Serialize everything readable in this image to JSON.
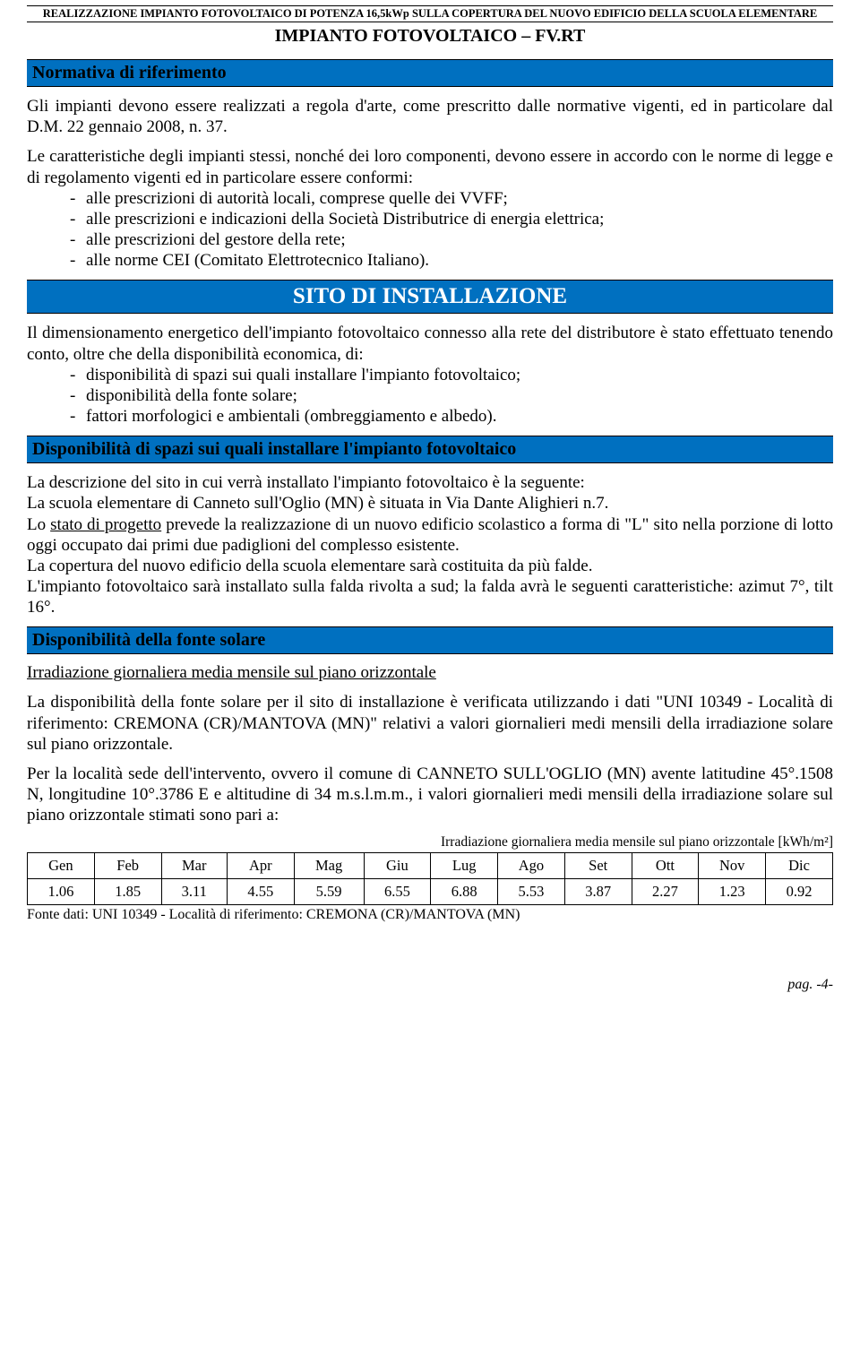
{
  "header": "REALIZZAZIONE IMPIANTO FOTOVOLTAICO DI POTENZA 16,5kWp SULLA COPERTURA DEL NUOVO EDIFICIO DELLA SCUOLA ELEMENTARE",
  "doc_title": "IMPIANTO FOTOVOLTAICO – FV.RT",
  "s1": {
    "heading": "Normativa di riferimento",
    "p1": "Gli impianti devono essere realizzati a regola d'arte, come prescritto dalle normative vigenti, ed in particolare dal D.M. 22 gennaio 2008, n. 37.",
    "p2": "Le caratteristiche degli impianti stessi, nonché dei loro componenti, devono essere in accordo con le norme di legge e di regolamento vigenti ed in particolare essere conformi:",
    "items": [
      "alle prescrizioni di autorità locali, comprese quelle dei VVFF;",
      "alle prescrizioni e indicazioni della Società Distributrice di energia elettrica;",
      "alle prescrizioni del gestore della rete;",
      "alle norme CEI (Comitato Elettrotecnico Italiano)."
    ]
  },
  "s2": {
    "heading": "SITO DI INSTALLAZIONE",
    "p1": "Il dimensionamento energetico dell'impianto fotovoltaico connesso alla rete del distributore è stato effettuato tenendo conto, oltre che della disponibilità economica, di:",
    "items": [
      "disponibilità di spazi sui quali installare l'impianto fotovoltaico;",
      "disponibilità della fonte solare;",
      "fattori morfologici e ambientali (ombreggiamento e albedo)."
    ]
  },
  "s3": {
    "heading": "Disponibilità di spazi sui quali installare l'impianto fotovoltaico",
    "p1": "La descrizione del sito in cui verrà installato l'impianto fotovoltaico è la seguente:",
    "p2": "La scuola elementare di Canneto sull'Oglio (MN) è situata in Via Dante Alighieri n.7.",
    "p3a": "Lo ",
    "p3u": "stato di progetto",
    "p3b": " prevede la realizzazione di un nuovo edificio scolastico a forma di \"L\" sito nella porzione di lotto oggi occupato dai primi due padiglioni del complesso esistente.",
    "p4": "La copertura del nuovo edificio della scuola elementare sarà costituita da più falde.",
    "p5": "L'impianto fotovoltaico sarà installato sulla falda rivolta a sud; la falda avrà le seguenti caratteristiche: azimut 7°, tilt 16°."
  },
  "s4": {
    "heading": "Disponibilità della fonte solare",
    "sub": "Irradiazione giornaliera media mensile sul piano orizzontale",
    "p1": "La disponibilità della fonte solare per il sito di installazione è verificata utilizzando i dati \"UNI 10349 - Località di riferimento: CREMONA (CR)/MANTOVA (MN)\" relativi a valori giornalieri medi mensili della irradiazione solare sul piano orizzontale.",
    "p2": "Per la località sede dell'intervento, ovvero il comune di CANNETO SULL'OGLIO (MN) avente latitudine 45°.1508 N, longitudine 10°.3786 E e altitudine di 34 m.s.l.m.m., i valori giornalieri medi mensili della irradiazione solare sul piano orizzontale stimati sono pari a:"
  },
  "table": {
    "caption": "Irradiazione giornaliera media mensile sul piano orizzontale [kWh/m²]",
    "months": [
      "Gen",
      "Feb",
      "Mar",
      "Apr",
      "Mag",
      "Giu",
      "Lug",
      "Ago",
      "Set",
      "Ott",
      "Nov",
      "Dic"
    ],
    "values": [
      "1.06",
      "1.85",
      "3.11",
      "4.55",
      "5.59",
      "6.55",
      "6.88",
      "5.53",
      "3.87",
      "2.27",
      "1.23",
      "0.92"
    ],
    "source": "Fonte dati: UNI 10349 - Località di riferimento: CREMONA (CR)/MANTOVA (MN)"
  },
  "page_num": "pag. -4-",
  "colors": {
    "bar": "#0070c0"
  }
}
